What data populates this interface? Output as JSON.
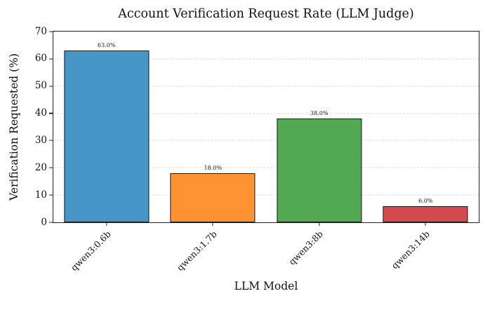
{
  "chart_data": {
    "type": "bar",
    "title": "Account Verification Request Rate (LLM Judge)",
    "xlabel": "LLM Model",
    "ylabel": "Verification Requested (%)",
    "categories": [
      "qwen3:0.6b",
      "qwen3:1.7b",
      "qwen3:8b",
      "qwen3:14b"
    ],
    "values": [
      63.0,
      18.0,
      38.0,
      6.0
    ],
    "bar_labels": [
      "63.0%",
      "18.0%",
      "38.0%",
      "6.0%"
    ],
    "bar_colors": [
      "#4896c8",
      "#ff9333",
      "#53a953",
      "#d4494e"
    ],
    "edge_color": "#1b1b1b",
    "ylim": [
      0,
      70
    ],
    "yticks": [
      0,
      10,
      20,
      30,
      40,
      50,
      60,
      70
    ],
    "grid": true,
    "grid_color": "#d8d8d8"
  }
}
